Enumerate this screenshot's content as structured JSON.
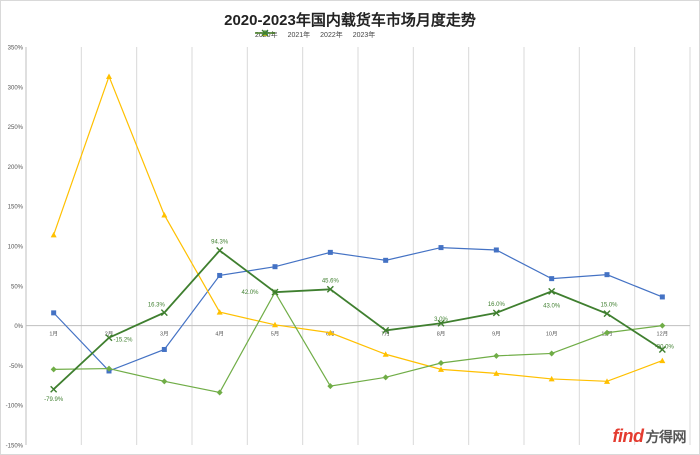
{
  "chart_data": {
    "type": "line",
    "title": "2020-2023年国内载货车市场月度走势",
    "categories": [
      "1月",
      "2月",
      "3月",
      "4月",
      "5月",
      "6月",
      "7月",
      "8月",
      "9月",
      "10月",
      "11月",
      "12月"
    ],
    "ylim": [
      -150,
      350
    ],
    "yticks": [
      -150,
      -100,
      -50,
      0,
      50,
      100,
      150,
      200,
      250,
      300,
      350
    ],
    "ytick_suffix": "%",
    "grid": "vertical",
    "legend_position": "top-center",
    "series": [
      {
        "name": "2020年",
        "color": "#4472c4",
        "marker": "square",
        "values": [
          16,
          -57,
          -30,
          63,
          74,
          92,
          82,
          98,
          95,
          59,
          64,
          36
        ]
      },
      {
        "name": "2021年",
        "color": "#ffc000",
        "marker": "triangle",
        "values": [
          114,
          313,
          139,
          17,
          1,
          -9,
          -36,
          -55,
          -60,
          -67,
          -70,
          -44
        ]
      },
      {
        "name": "2022年",
        "color": "#70ad47",
        "marker": "diamond",
        "values": [
          -55,
          -54,
          -70,
          -84,
          42,
          -76,
          -65,
          -47,
          -38,
          -35,
          -9,
          0
        ]
      },
      {
        "name": "2023年",
        "color": "#3f7f2f",
        "marker": "x",
        "values": [
          -79.9,
          -15.2,
          16.3,
          94.3,
          42.0,
          45.6,
          -6.0,
          3.0,
          16.0,
          43.0,
          15.0,
          -30.0
        ]
      }
    ],
    "data_labels": [
      {
        "series": "2023年",
        "index": 0,
        "text": "-79.9%"
      },
      {
        "series": "2023年",
        "index": 1,
        "text": "-15.2%"
      },
      {
        "series": "2023年",
        "index": 2,
        "text": "16.3%"
      },
      {
        "series": "2023年",
        "index": 3,
        "text": "94.3%"
      },
      {
        "series": "2023年",
        "index": 4,
        "text": "42.0%"
      },
      {
        "series": "2023年",
        "index": 5,
        "text": "45.6%"
      },
      {
        "series": "2023年",
        "index": 7,
        "text": "3.0%"
      },
      {
        "series": "2023年",
        "index": 8,
        "text": "16.0%"
      },
      {
        "series": "2023年",
        "index": 9,
        "text": "43.0%"
      },
      {
        "series": "2023年",
        "index": 10,
        "text": "15.0%"
      },
      {
        "series": "2023年",
        "index": 11,
        "text": "-30.0%"
      }
    ]
  },
  "watermark": {
    "logo_text": "find",
    "brand_text": "方得网"
  }
}
